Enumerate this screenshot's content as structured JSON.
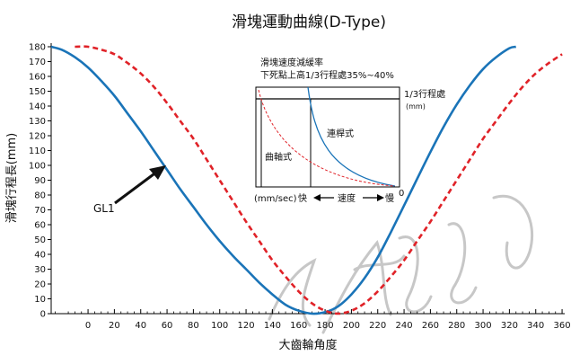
{
  "chart_data": {
    "type": "line",
    "title": "滑塊運動曲線(D-Type)",
    "xlabel": "大齒輪角度",
    "ylabel": "滑塊行程長(mm)",
    "xlim": [
      -28,
      362
    ],
    "ylim": [
      0,
      180
    ],
    "x_ticks": [
      0,
      20,
      40,
      60,
      80,
      100,
      120,
      140,
      160,
      180,
      200,
      220,
      240,
      260,
      280,
      300,
      320,
      340,
      360
    ],
    "y_ticks": [
      0,
      10,
      20,
      30,
      40,
      50,
      60,
      70,
      80,
      90,
      100,
      110,
      120,
      130,
      140,
      150,
      160,
      170,
      180
    ],
    "grid": false,
    "series": [
      {
        "name": "",
        "style": "solid",
        "color": "#1a74b8",
        "x": [
          -28,
          -20,
          -10,
          0,
          10,
          20,
          30,
          40,
          50,
          60,
          70,
          80,
          90,
          100,
          110,
          120,
          130,
          140,
          150,
          160,
          170,
          180,
          190,
          200,
          210,
          220,
          230,
          240,
          250,
          260,
          270,
          280,
          290,
          300,
          310,
          320,
          325
        ],
        "y": [
          180,
          178,
          173,
          166,
          157,
          147,
          135,
          123,
          110,
          97,
          84,
          72,
          60,
          49,
          39,
          30,
          21,
          13,
          6,
          2,
          0,
          1,
          5,
          13,
          24,
          38,
          55,
          73,
          91,
          109,
          126,
          141,
          154,
          165,
          173,
          179,
          180
        ]
      },
      {
        "name": "",
        "style": "dashed",
        "color": "#e02228",
        "x": [
          -10,
          0,
          10,
          20,
          30,
          40,
          50,
          60,
          70,
          80,
          90,
          100,
          110,
          120,
          130,
          140,
          150,
          160,
          170,
          180,
          190,
          200,
          210,
          220,
          230,
          240,
          250,
          260,
          270,
          280,
          290,
          300,
          310,
          320,
          330,
          340,
          350,
          360
        ],
        "y": [
          180,
          180,
          178,
          175,
          169,
          162,
          153,
          142,
          130,
          118,
          104,
          90,
          76,
          62,
          49,
          36,
          25,
          15,
          7,
          2,
          0,
          2,
          7,
          15,
          25,
          36,
          49,
          62,
          76,
          90,
          104,
          118,
          130,
          142,
          153,
          162,
          169,
          175
        ]
      }
    ],
    "annotations": {
      "gl1": "GL1",
      "inset_title_1": "滑塊速度減緩率",
      "inset_title_2": "下死點上高1/3行程處35%~40%",
      "inset_right_1": "1/3行程處",
      "inset_right_2": "(mm)",
      "inset_label_link": "連桿式",
      "inset_label_crank": "曲軸式",
      "inset_unit": "(mm/sec)",
      "inset_fast": "快",
      "inset_speed": "速度",
      "inset_slow": "慢",
      "inset_zero": "0"
    }
  }
}
